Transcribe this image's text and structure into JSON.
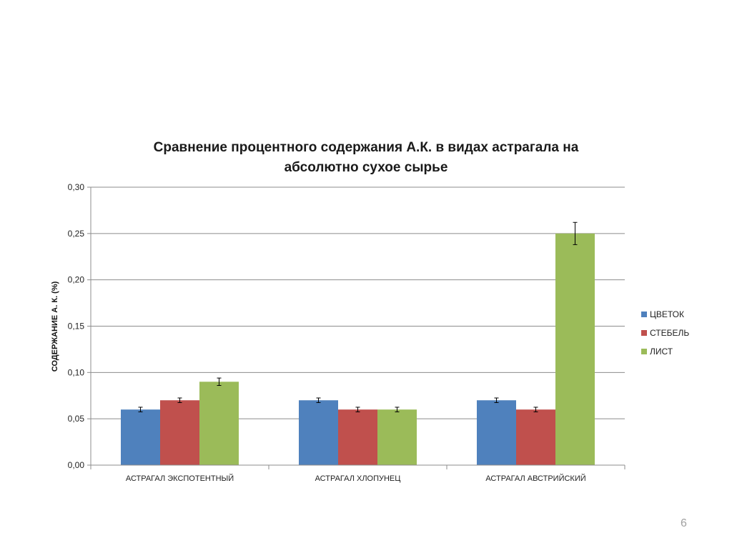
{
  "page_number": "6",
  "chart_data": {
    "type": "bar",
    "title_lines": [
      "Сравнение процентного содержания А.К. в видах астрагала  на",
      "абсолютно сухое сырье"
    ],
    "ylabel": "СОДЕРЖАНИЕ А. К. (%)",
    "xlabel": "",
    "ylim": [
      0,
      0.3
    ],
    "yticks": [
      "0,00",
      "0,05",
      "0,10",
      "0,15",
      "0,20",
      "0,25",
      "0,30"
    ],
    "categories": [
      "АСТРАГАЛ ЭКСПОТЕНТНЫЙ",
      "АСТРАГАЛ ХЛОПУНЕЦ",
      "АСТРАГАЛ АВСТРИЙСКИЙ"
    ],
    "series": [
      {
        "name": "ЦВЕТОК",
        "color": "#4f81bd",
        "values": [
          0.06,
          0.07,
          0.07
        ],
        "errors": [
          0.0025,
          0.0025,
          0.0025
        ]
      },
      {
        "name": "СТЕБЕЛЬ",
        "color": "#c0504d",
        "values": [
          0.07,
          0.06,
          0.06
        ],
        "errors": [
          0.0025,
          0.0025,
          0.0025
        ]
      },
      {
        "name": "ЛИСТ",
        "color": "#9bbb59",
        "values": [
          0.09,
          0.06,
          0.25
        ],
        "errors": [
          0.004,
          0.0025,
          0.012
        ]
      }
    ],
    "grid": true,
    "legend_position": "right"
  }
}
